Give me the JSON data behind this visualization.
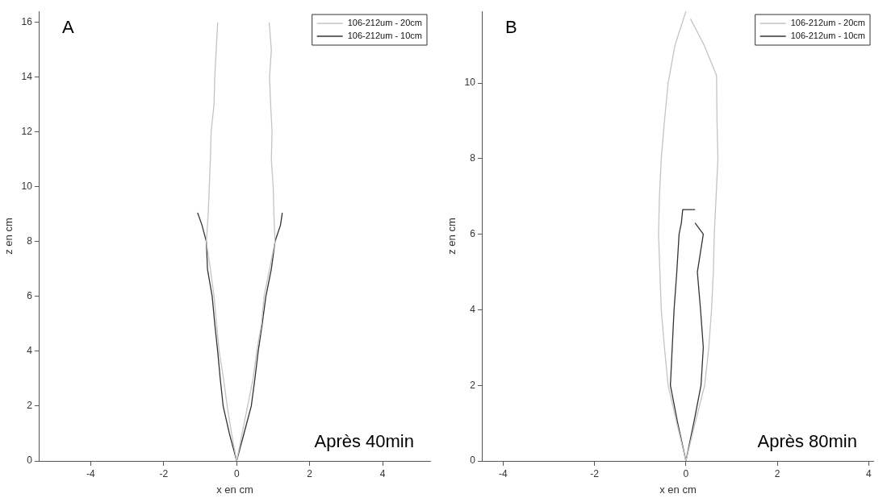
{
  "chart_data": [
    {
      "type": "line",
      "title": "A",
      "xlabel": "x en cm",
      "ylabel": "z en cm",
      "annotations": [
        "Après 40min"
      ],
      "xlim": [
        -5.4,
        5.3
      ],
      "xticks": [
        -4,
        -2,
        0,
        2,
        4
      ],
      "ylim": [
        0,
        16.4
      ],
      "yticks": [
        0,
        2,
        4,
        6,
        8,
        10,
        12,
        14,
        16
      ],
      "legend": "top right",
      "series": [
        {
          "name": "106-212um - 20cm",
          "color": "#c4c4c4",
          "x": [
            -0.52,
            -0.56,
            -0.6,
            -0.62,
            -0.7,
            -0.72,
            -0.75,
            -0.78,
            -0.83,
            -0.72,
            -0.62,
            -0.55,
            -0.48,
            -0.36,
            -0.26,
            -0.14,
            0,
            0.15,
            0.3,
            0.45,
            0.55,
            0.68,
            0.75,
            0.9,
            1.05,
            1.02,
            1.0,
            0.95,
            0.97,
            0.93,
            0.9,
            0.95,
            0.89
          ],
          "values": [
            16,
            15,
            14,
            13,
            12,
            11,
            10,
            9,
            8,
            7,
            6,
            5,
            4,
            3,
            2,
            1,
            0,
            1,
            2,
            3,
            4,
            5,
            6,
            7,
            8,
            9,
            10,
            11,
            12,
            13,
            14,
            15,
            16
          ]
        },
        {
          "name": "106-212um - 10cm",
          "color": "#333333",
          "x": [
            -1.07,
            -0.95,
            -0.83,
            -0.8,
            -0.67,
            -0.6,
            -0.52,
            -0.45,
            -0.37,
            -0.2,
            0,
            0.2,
            0.4,
            0.5,
            0.59,
            0.7,
            0.8,
            0.95,
            1.05,
            1.2,
            1.25
          ],
          "values": [
            9.05,
            8.6,
            8,
            7,
            6,
            5,
            4,
            3,
            2,
            1,
            0,
            1,
            2,
            3,
            4,
            5,
            6,
            7,
            8,
            8.6,
            9.05
          ]
        }
      ]
    },
    {
      "type": "line",
      "title": "B",
      "xlabel": "x en cm",
      "ylabel": "z en cm",
      "annotations": [
        "Après 80min"
      ],
      "xlim": [
        -4.45,
        4.1
      ],
      "xticks": [
        -4,
        -2,
        0,
        2,
        4
      ],
      "ylim": [
        0,
        11.9
      ],
      "yticks": [
        0,
        2,
        4,
        6,
        8,
        10
      ],
      "legend": "top right",
      "series": [
        {
          "name": "106-212um - 20cm",
          "color": "#c4c4c4",
          "x": [
            0,
            -0.24,
            -0.39,
            -0.47,
            -0.54,
            -0.58,
            -0.6,
            -0.57,
            -0.54,
            -0.47,
            -0.39,
            -0.2,
            0,
            0.2,
            0.41,
            0.5,
            0.56,
            0.6,
            0.62,
            0.66,
            0.7,
            0.68,
            0.67,
            0.4,
            0.1
          ],
          "values": [
            11.9,
            11,
            10,
            9,
            8,
            7,
            6,
            5,
            4,
            3,
            2,
            1,
            0,
            1,
            2,
            3,
            4,
            5,
            6,
            7,
            8,
            9,
            10.2,
            11,
            11.7
          ]
        },
        {
          "name": "106-212um - 10cm",
          "color": "#333333",
          "x": [
            0.2,
            -0.07,
            -0.1,
            -0.15,
            -0.2,
            -0.26,
            -0.3,
            -0.34,
            -0.18,
            0,
            0.17,
            0.33,
            0.38,
            0.32,
            0.25,
            0.38,
            0.2
          ],
          "values": [
            6.65,
            6.65,
            6.3,
            6,
            5,
            4,
            3,
            2,
            1,
            0,
            1,
            2,
            3,
            4,
            5,
            6,
            6.3
          ]
        }
      ]
    }
  ]
}
